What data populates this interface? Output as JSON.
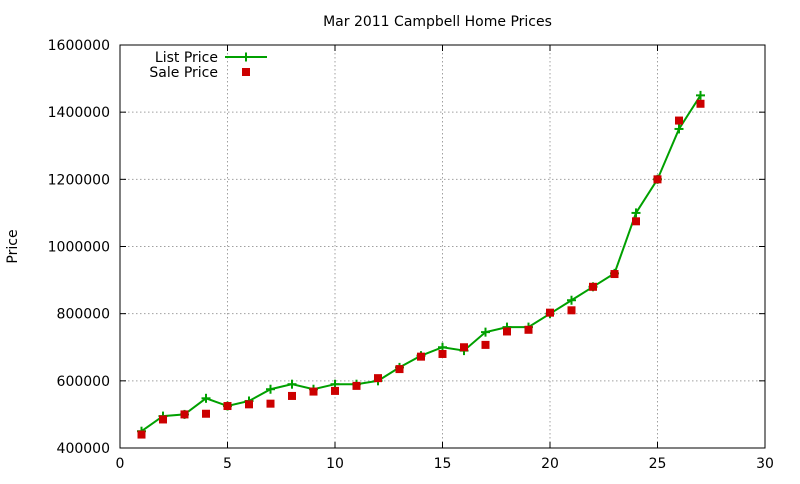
{
  "chart_data": {
    "type": "line",
    "title": "Mar 2011 Campbell Home Prices",
    "xlabel": "",
    "ylabel": "Price",
    "xlim": [
      0,
      30
    ],
    "ylim": [
      400000,
      1600000
    ],
    "xticks": [
      0,
      5,
      10,
      15,
      20,
      25,
      30
    ],
    "yticks": [
      400000,
      600000,
      800000,
      1000000,
      1200000,
      1400000,
      1600000
    ],
    "grid": true,
    "legend_position": "top-left",
    "x": [
      1,
      2,
      3,
      4,
      5,
      6,
      7,
      8,
      9,
      10,
      11,
      12,
      13,
      14,
      15,
      16,
      17,
      18,
      19,
      20,
      21,
      22,
      23,
      24,
      25,
      26,
      27
    ],
    "series": [
      {
        "name": "List Price",
        "style": "line+cross",
        "color": "#00a000",
        "values": [
          450000,
          495000,
          500000,
          548000,
          525000,
          540000,
          575000,
          590000,
          575000,
          590000,
          590000,
          600000,
          640000,
          675000,
          700000,
          690000,
          745000,
          760000,
          760000,
          800000,
          840000,
          880000,
          920000,
          1100000,
          1200000,
          1350000,
          1450000
        ]
      },
      {
        "name": "Sale Price",
        "style": "square",
        "color": "#cc0000",
        "values": [
          440000,
          485000,
          500000,
          502000,
          525000,
          530000,
          532000,
          555000,
          568000,
          570000,
          585000,
          608000,
          635000,
          672000,
          680000,
          700000,
          707000,
          747000,
          752000,
          803000,
          810000,
          880000,
          918000,
          1075000,
          1200000,
          1375000,
          1425000
        ]
      }
    ]
  }
}
